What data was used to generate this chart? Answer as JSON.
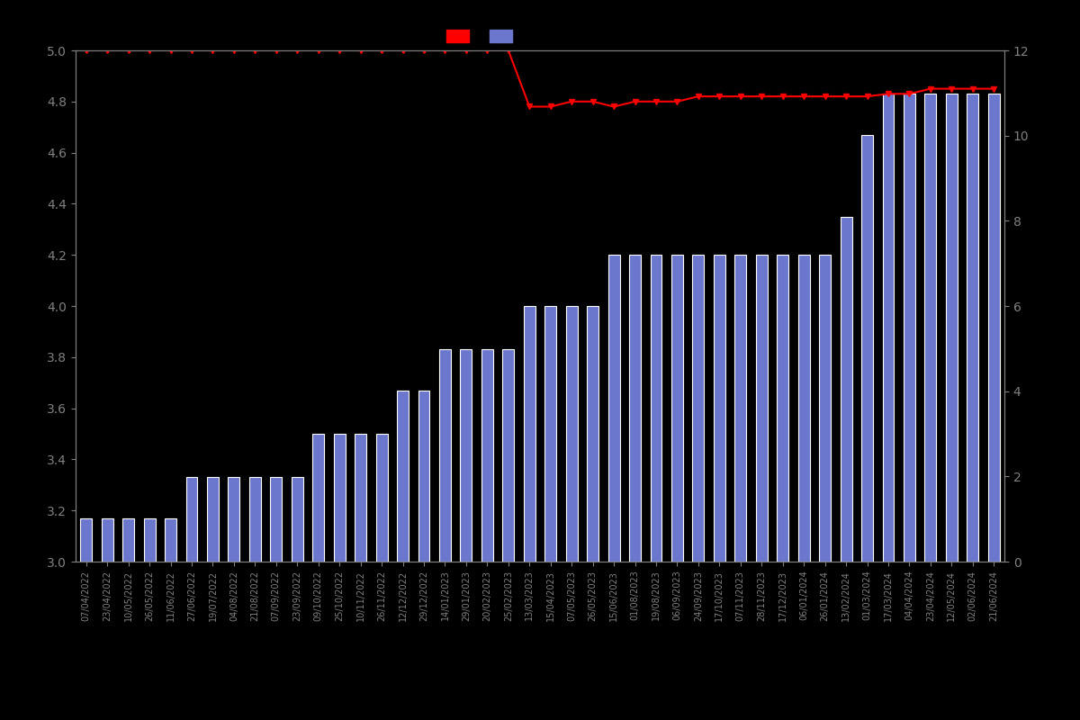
{
  "background_color": "#000000",
  "text_color": "#808080",
  "bar_color": "#6b77cc",
  "bar_edge_color": "#ffffff",
  "line_color": "#ff0000",
  "line_marker": "v",
  "left_ylim": [
    3.0,
    5.0
  ],
  "right_ylim": [
    0,
    12
  ],
  "left_yticks": [
    3.0,
    3.2,
    3.4,
    3.6,
    3.8,
    4.0,
    4.2,
    4.4,
    4.6,
    4.8,
    5.0
  ],
  "right_yticks": [
    0,
    2,
    4,
    6,
    8,
    10,
    12
  ],
  "dates": [
    "07/04/2022",
    "23/04/2022",
    "10/05/2022",
    "26/05/2022",
    "11/06/2022",
    "27/06/2022",
    "19/07/2022",
    "04/08/2022",
    "21/08/2022",
    "07/09/2022",
    "23/09/2022",
    "09/10/2022",
    "25/10/2022",
    "10/11/2022",
    "26/11/2022",
    "12/12/2022",
    "29/12/2022",
    "14/01/2023",
    "29/01/2023",
    "20/02/2023",
    "25/02/2023",
    "13/03/2023",
    "15/04/2023",
    "07/05/2023",
    "26/05/2023",
    "15/06/2023",
    "01/08/2023",
    "19/08/2023",
    "06/09/2023",
    "24/09/2023",
    "17/10/2023",
    "07/11/2023",
    "28/11/2023",
    "17/12/2023",
    "06/01/2024",
    "26/01/2024",
    "13/02/2024",
    "01/03/2024",
    "17/03/2024",
    "04/04/2024",
    "23/04/2024",
    "12/05/2024",
    "02/06/2024",
    "21/06/2024"
  ],
  "bar_heights": [
    3.17,
    3.17,
    3.17,
    3.17,
    3.17,
    3.33,
    3.33,
    3.33,
    3.33,
    3.33,
    3.33,
    3.5,
    3.5,
    3.5,
    3.5,
    3.67,
    3.67,
    3.83,
    3.83,
    3.83,
    3.83,
    4.0,
    4.0,
    4.0,
    4.0,
    4.2,
    4.2,
    4.2,
    4.2,
    4.2,
    4.2,
    4.2,
    4.2,
    4.2,
    4.2,
    4.2,
    4.35,
    4.67,
    4.83,
    4.83,
    4.83,
    4.83,
    4.83,
    4.83
  ],
  "line_values": [
    5.0,
    5.0,
    5.0,
    5.0,
    5.0,
    5.0,
    5.0,
    5.0,
    5.0,
    5.0,
    5.0,
    5.0,
    5.0,
    5.0,
    5.0,
    5.0,
    5.0,
    5.0,
    5.0,
    5.0,
    5.0,
    4.78,
    4.78,
    4.8,
    4.8,
    4.78,
    4.8,
    4.8,
    4.8,
    4.82,
    4.82,
    4.82,
    4.82,
    4.82,
    4.82,
    4.82,
    4.82,
    4.82,
    4.83,
    4.83,
    4.85,
    4.85,
    4.85,
    4.85
  ],
  "figsize": [
    12.0,
    8.0
  ],
  "dpi": 100
}
